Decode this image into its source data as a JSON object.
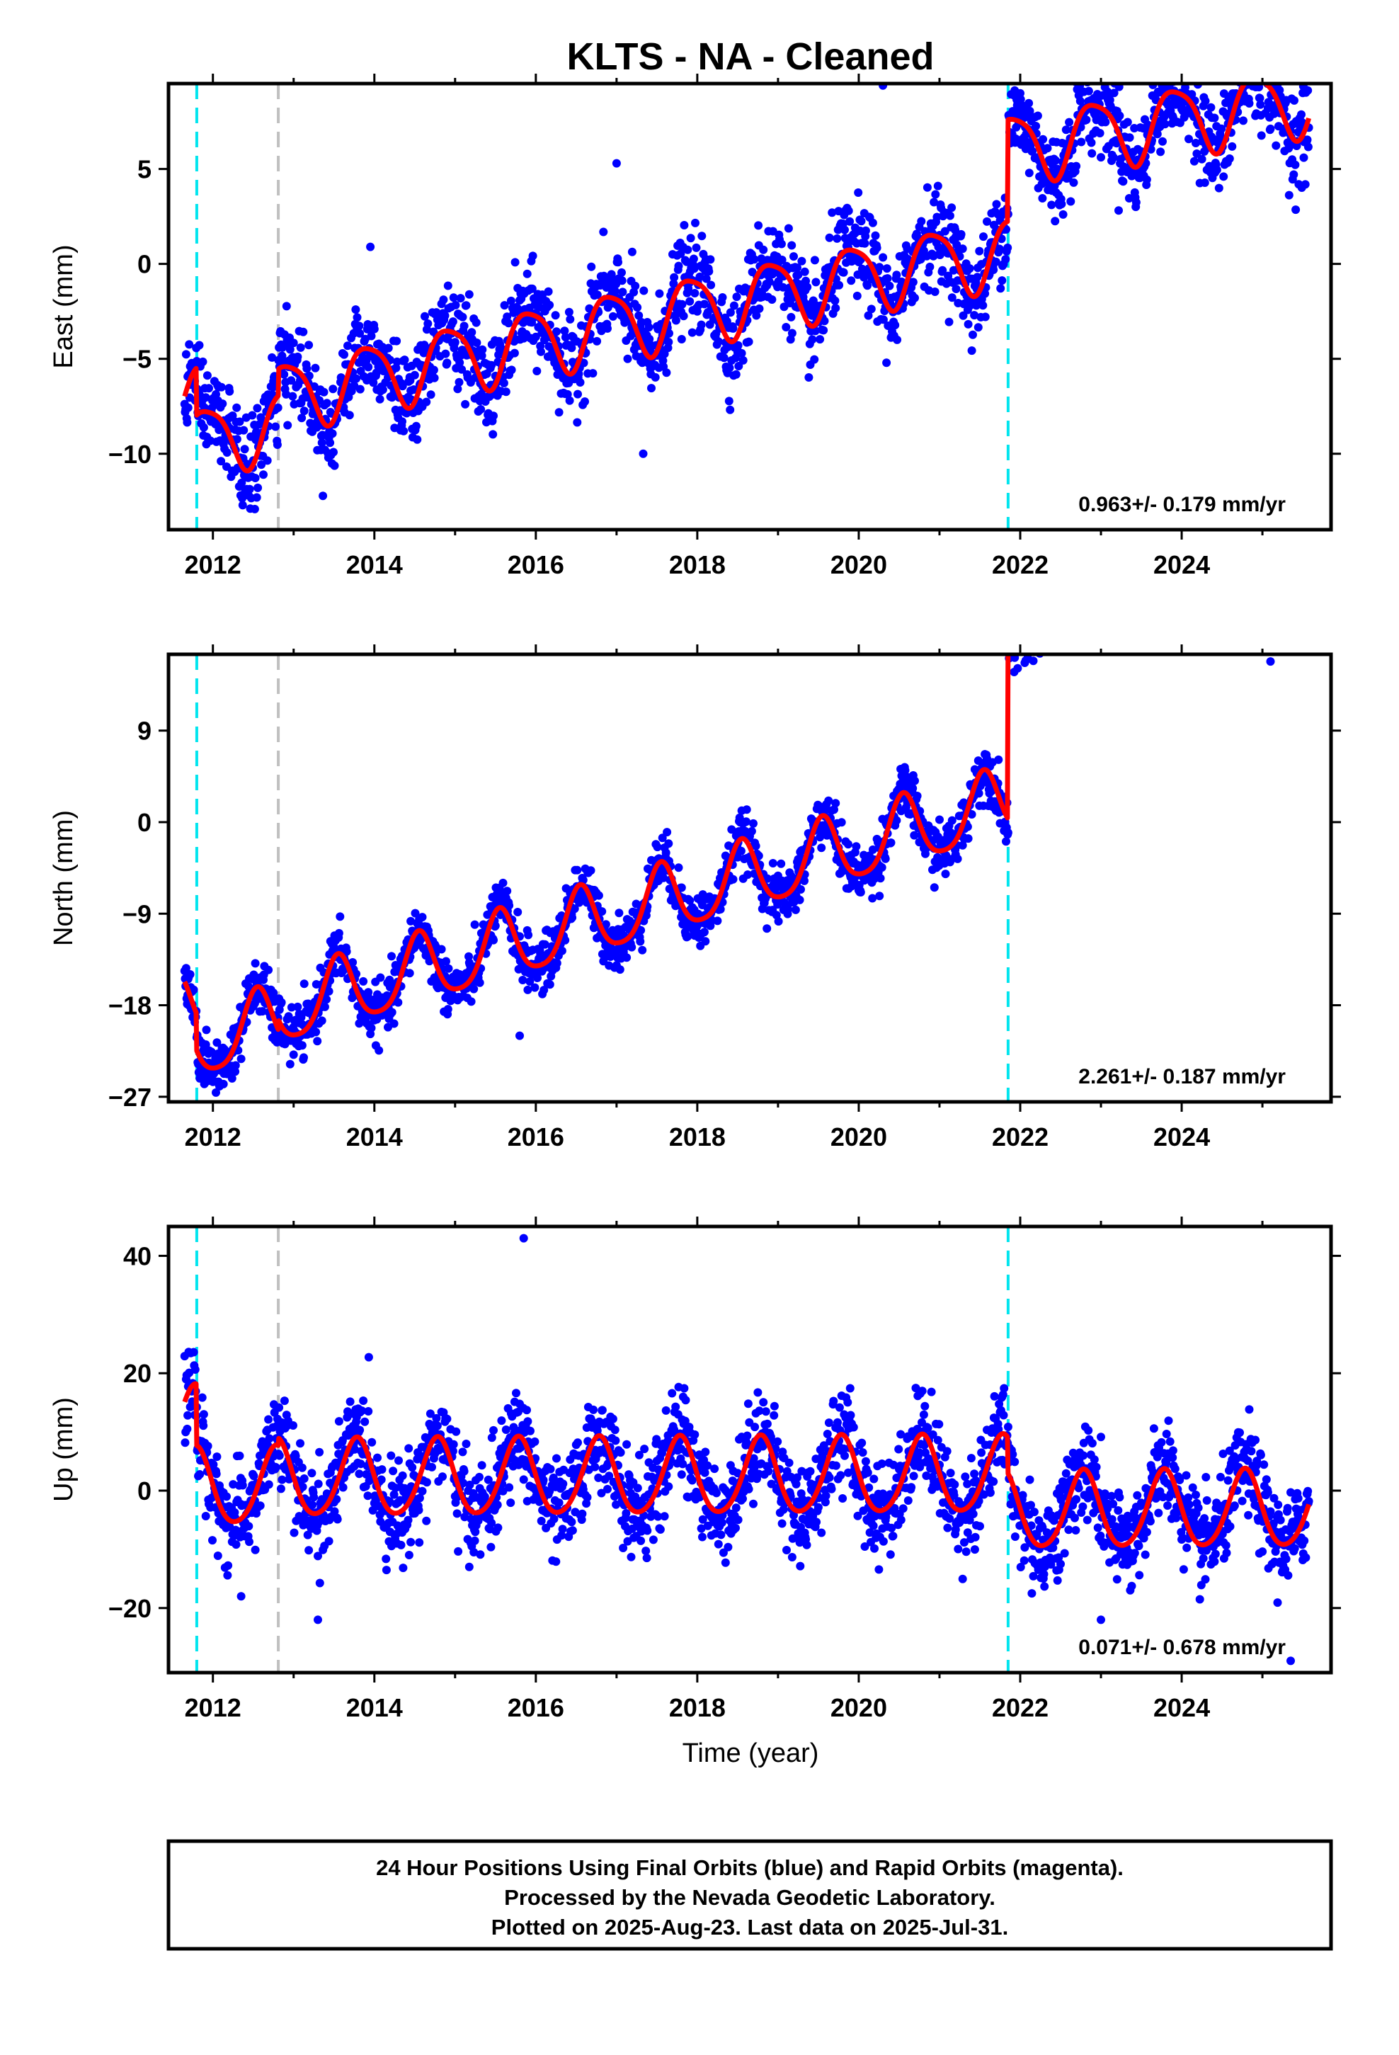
{
  "page": {
    "title": "KLTS  - NA - Cleaned",
    "xlabel": "Time (year)",
    "footer": [
      "24 Hour Positions Using Final Orbits (blue) and Rapid Orbits (magenta).",
      "Processed by the Nevada Geodetic Laboratory.",
      "Plotted on 2025-Aug-23. Last data on 2025-Jul-31."
    ]
  },
  "colors": {
    "points": "#0000ff",
    "fit": "#ff0000",
    "equipment_change": "#00e5ee",
    "other_event": "#c0c0c0",
    "axes": "#000000"
  },
  "chart_data": [
    {
      "type": "scatter",
      "name": "east",
      "ylabel": "East (mm)",
      "rate_text": "0.963+/- 0.179 mm/yr",
      "xlim": [
        2011.45,
        2025.85
      ],
      "ylim": [
        -14.0,
        9.5
      ],
      "xticks": [
        2012,
        2014,
        2016,
        2018,
        2020,
        2022,
        2024
      ],
      "yticks": [
        -10,
        -5,
        0,
        5
      ],
      "event_lines": [
        {
          "x": 2011.8,
          "kind": "equipment_change"
        },
        {
          "x": 2012.81,
          "kind": "other_event"
        },
        {
          "x": 2021.85,
          "kind": "equipment_change"
        }
      ],
      "fit_model": {
        "segments": [
          {
            "start": 2011.65,
            "end": 2011.8,
            "offset": -5.9
          },
          {
            "start": 2011.8,
            "end": 2012.81,
            "offset": -8.4
          },
          {
            "start": 2012.81,
            "end": 2021.85,
            "offset": -7.0
          },
          {
            "start": 2021.85,
            "end": 2025.58,
            "offset": -1.65
          }
        ],
        "ref_year": 2012.81,
        "rate_mm_per_yr": 0.963,
        "quadratic": -0.012,
        "annual_amplitude": 1.8,
        "annual_peak": 0.92,
        "semiannual_amplitude": 0.35,
        "semiannual_peak": 0.2,
        "scatter_sigma": 1.2
      },
      "outliers": [
        [
          2017.33,
          -10.0
        ],
        [
          2017.0,
          5.3
        ],
        [
          2020.3,
          9.4
        ],
        [
          2013.95,
          0.9
        ]
      ]
    },
    {
      "type": "scatter",
      "name": "north",
      "ylabel": "North (mm)",
      "rate_text": "2.261+/- 0.187 mm/yr",
      "xlim": [
        2011.45,
        2025.85
      ],
      "ylim": [
        -27.5,
        16.5
      ],
      "xticks": [
        2012,
        2014,
        2016,
        2018,
        2020,
        2022,
        2024
      ],
      "yticks": [
        -27,
        -18,
        -9,
        0,
        9
      ],
      "event_lines": [
        {
          "x": 2011.8,
          "kind": "equipment_change"
        },
        {
          "x": 2012.81,
          "kind": "other_event"
        },
        {
          "x": 2021.85,
          "kind": "equipment_change"
        }
      ],
      "fit_model": {
        "segments": [
          {
            "start": 2011.65,
            "end": 2011.8,
            "offset": -16.0
          },
          {
            "start": 2011.8,
            "end": 2012.81,
            "offset": -19.6
          },
          {
            "start": 2012.81,
            "end": 2021.85,
            "offset": -18.6
          },
          {
            "start": 2021.85,
            "end": 2025.58,
            "offset": -0.8
          }
        ],
        "ref_year": 2012.81,
        "rate_mm_per_yr": 2.261,
        "quadratic": 0.0,
        "annual_amplitude": 3.4,
        "annual_peak": 0.55,
        "semiannual_amplitude": 0.6,
        "semiannual_peak": 0.55,
        "scatter_sigma": 1.3
      },
      "outliers": [
        [
          2025.1,
          15.8
        ],
        [
          2015.8,
          -21.0
        ],
        [
          2013.0,
          -21.5
        ]
      ]
    },
    {
      "type": "scatter",
      "name": "up",
      "ylabel": "Up (mm)",
      "rate_text": "0.071+/- 0.678 mm/yr",
      "xlim": [
        2011.45,
        2025.85
      ],
      "ylim": [
        -31.0,
        45.0
      ],
      "xticks": [
        2012,
        2014,
        2016,
        2018,
        2020,
        2022,
        2024
      ],
      "yticks": [
        -20,
        0,
        20,
        40
      ],
      "event_lines": [
        {
          "x": 2011.8,
          "kind": "equipment_change"
        },
        {
          "x": 2012.81,
          "kind": "other_event"
        },
        {
          "x": 2021.85,
          "kind": "equipment_change"
        }
      ],
      "fit_model": {
        "segments": [
          {
            "start": 2011.65,
            "end": 2011.8,
            "offset": 11.0
          },
          {
            "start": 2011.8,
            "end": 2012.81,
            "offset": 0.5
          },
          {
            "start": 2012.81,
            "end": 2021.85,
            "offset": 1.8
          },
          {
            "start": 2021.85,
            "end": 2025.58,
            "offset": -4.3
          }
        ],
        "ref_year": 2012.81,
        "rate_mm_per_yr": 0.071,
        "quadratic": 0.0,
        "annual_amplitude": 6.5,
        "annual_peak": 0.78,
        "semiannual_amplitude": 0.8,
        "semiannual_peak": 0.3,
        "scatter_sigma": 4.0
      },
      "outliers": [
        [
          2015.85,
          43.0
        ],
        [
          2025.35,
          -29.0
        ],
        [
          2013.3,
          -22.0
        ],
        [
          2023.0,
          -22.0
        ],
        [
          2012.35,
          -18.0
        ]
      ]
    }
  ]
}
